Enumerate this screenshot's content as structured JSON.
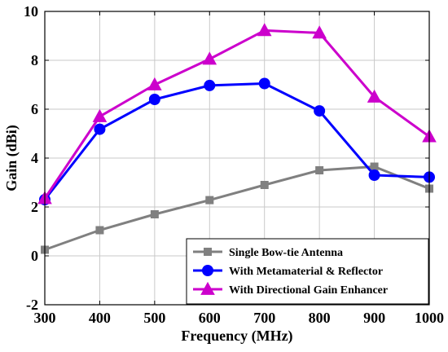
{
  "chart_data": {
    "type": "line",
    "title": "",
    "xlabel": "Frequency (MHz)",
    "ylabel": "Gain (dBi)",
    "xlim": [
      300,
      1000
    ],
    "ylim": [
      -2,
      10
    ],
    "x_ticks": [
      300,
      400,
      500,
      600,
      700,
      800,
      900,
      1000
    ],
    "y_ticks": [
      -2,
      0,
      2,
      4,
      6,
      8,
      10
    ],
    "grid": true,
    "legend_position": "bottom-right",
    "x": [
      300,
      400,
      500,
      600,
      700,
      800,
      900,
      1000
    ],
    "series": [
      {
        "name": "Single Bow-tie Antenna",
        "values": [
          0.25,
          1.05,
          1.7,
          2.28,
          2.9,
          3.5,
          3.65,
          2.75
        ],
        "color": "#808080",
        "marker": "square"
      },
      {
        "name": "With Metamaterial & Reflector",
        "values": [
          2.3,
          5.18,
          6.4,
          6.97,
          7.05,
          5.93,
          3.3,
          3.22
        ],
        "color": "#0000ff",
        "marker": "circle"
      },
      {
        "name": "With Directional Gain Enhancer",
        "values": [
          2.35,
          5.7,
          7.0,
          8.05,
          9.22,
          9.12,
          6.5,
          4.88
        ],
        "color": "#cc00cc",
        "marker": "triangle"
      }
    ]
  }
}
